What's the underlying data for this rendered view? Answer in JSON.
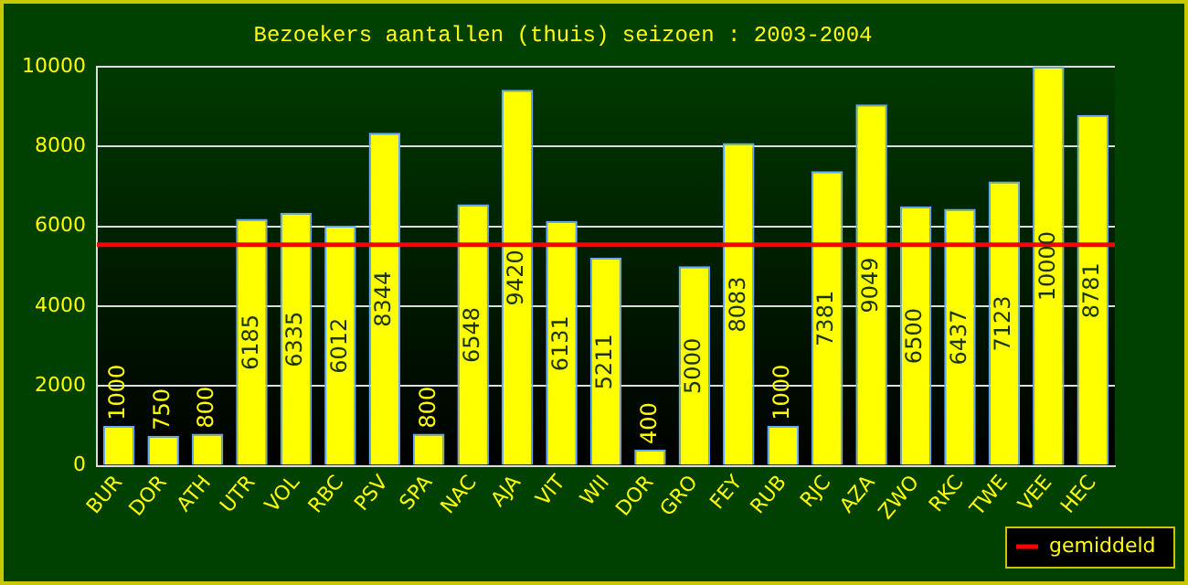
{
  "chart_data": {
    "type": "bar",
    "title": "Bezoekers aantallen (thuis) seizoen : 2003-2004",
    "categories": [
      "BUR",
      "DOR",
      "ATH",
      "UTR",
      "VOL",
      "RBC",
      "PSV",
      "SPA",
      "NAC",
      "AJA",
      "VIT",
      "WII",
      "DOR",
      "GRO",
      "FEY",
      "RUB",
      "RJC",
      "AZA",
      "ZWO",
      "RKC",
      "TWE",
      "VEE",
      "HEC"
    ],
    "values": [
      1000,
      750,
      800,
      6185,
      6335,
      6012,
      8344,
      800,
      6548,
      9420,
      6131,
      5211,
      400,
      5000,
      8083,
      1000,
      7381,
      9049,
      6500,
      6437,
      7123,
      10000,
      8781
    ],
    "color": "#ffff00",
    "ylim": [
      0,
      10000
    ],
    "yticks": [
      0,
      2000,
      4000,
      6000,
      8000,
      10000
    ],
    "grid": "y",
    "data_labels": true,
    "ref_lines": [
      {
        "axis": "y",
        "value": 5534,
        "label": "gemiddeld",
        "color": "#ff0000"
      }
    ],
    "legend": "bottom right"
  }
}
